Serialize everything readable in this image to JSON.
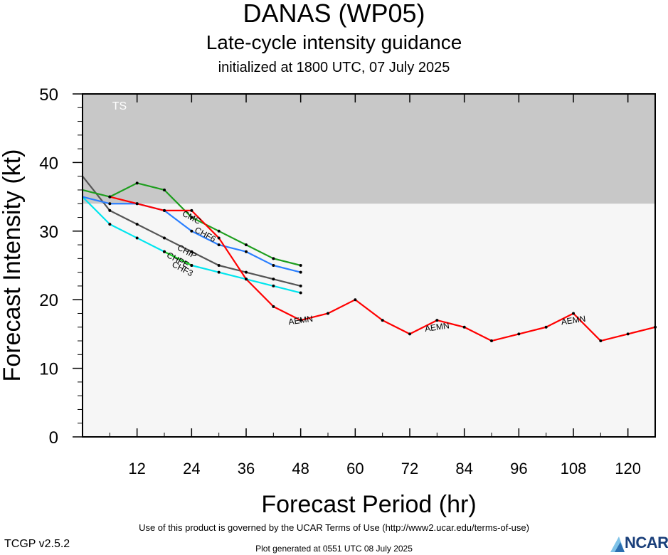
{
  "header": {
    "title": "DANAS (WP05)",
    "subtitle": "Late-cycle intensity guidance",
    "initialized": "initialized at 1800 UTC, 07 July 2025"
  },
  "footer": {
    "terms": "Use of this product is governed by the UCAR Terms of Use (http://www2.ucar.edu/terms-of-use)",
    "version": "TCGP v2.5.2",
    "generated": "Plot generated at 0551 UTC   08 July 2025",
    "logo_text": "NCAR"
  },
  "chart_data": {
    "type": "line",
    "xlabel": "Forecast Period (hr)",
    "ylabel": "Forecast Intensity (kt)",
    "xlim": [
      0,
      126
    ],
    "ylim": [
      0,
      50
    ],
    "xticks": [
      12,
      24,
      36,
      48,
      60,
      72,
      84,
      96,
      108,
      120
    ],
    "yticks": [
      0,
      10,
      20,
      30,
      40,
      50
    ],
    "bands": [
      {
        "label": "TS",
        "from": 34,
        "to": 50,
        "color": "#c8c8c8"
      }
    ],
    "series": [
      {
        "name": "AEMN",
        "color": "#ff0000",
        "x": [
          6,
          12,
          18,
          24,
          30,
          36,
          42,
          48,
          54,
          60,
          66,
          72,
          78,
          84,
          90,
          96,
          102,
          108,
          114,
          120,
          126
        ],
        "y": [
          35,
          34,
          33,
          33,
          29,
          23,
          19,
          17,
          18,
          20,
          17,
          15,
          17,
          16,
          14,
          15,
          16,
          18,
          14,
          15,
          16
        ],
        "labels": [
          {
            "x": 48,
            "y": 17
          },
          {
            "x": 78,
            "y": 16
          },
          {
            "x": 108,
            "y": 17
          }
        ]
      },
      {
        "name": "CMC",
        "color": "#1e9e1e",
        "x": [
          0,
          6,
          12,
          18,
          24,
          30,
          36,
          42,
          48
        ],
        "y": [
          36,
          35,
          37,
          36,
          32,
          30,
          28,
          26,
          25
        ],
        "labels": [
          {
            "x": 24,
            "y": 32
          }
        ]
      },
      {
        "name": "CHF6",
        "color": "#2a7fff",
        "x": [
          0,
          6,
          12,
          18,
          24,
          30,
          36,
          42,
          48
        ],
        "y": [
          35,
          34,
          34,
          33,
          30,
          28,
          27,
          25,
          24
        ],
        "labels": [
          {
            "x": 27,
            "y": 29.5
          }
        ]
      },
      {
        "name": "CHIP",
        "color": "#555555",
        "x": [
          0,
          6,
          12,
          18,
          24,
          30,
          36,
          42,
          48
        ],
        "y": [
          38,
          33,
          31,
          29,
          27,
          25,
          24,
          23,
          22
        ],
        "labels": [
          {
            "x": 23,
            "y": 27
          }
        ]
      },
      {
        "name": "CHF3",
        "color": "#00e5ee",
        "x": [
          0,
          6,
          12,
          18,
          24,
          30,
          36,
          42,
          48
        ],
        "y": [
          35,
          31,
          29,
          27,
          25,
          24,
          23,
          22,
          21
        ],
        "labels": [
          {
            "x": 22,
            "y": 24.5
          }
        ]
      },
      {
        "name": "CHPE",
        "color": "#1fce1f",
        "x": [
          18,
          24
        ],
        "y": [
          27,
          25
        ],
        "labels": [
          {
            "x": 21,
            "y": 25.8
          }
        ]
      }
    ]
  }
}
